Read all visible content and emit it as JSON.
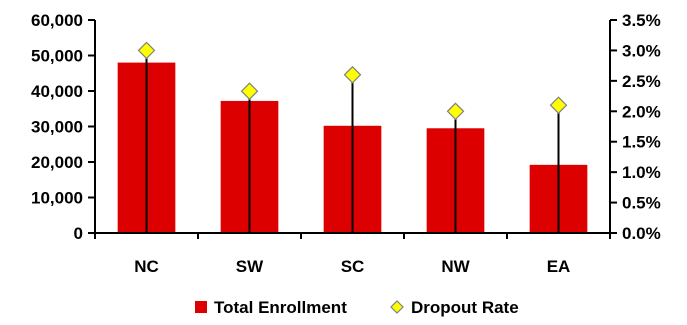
{
  "chart_data": {
    "type": "bar",
    "categories": [
      "NC",
      "SW",
      "SC",
      "NW",
      "EA"
    ],
    "series": [
      {
        "name": "Total Enrollment",
        "kind": "bar",
        "axis": "left",
        "color": "#dd0000",
        "values": [
          48000,
          37200,
          30200,
          29500,
          19200
        ]
      },
      {
        "name": "Dropout Rate",
        "kind": "marker-line",
        "axis": "right",
        "marker": "diamond",
        "color": "#ffff00",
        "values": [
          0.03,
          0.0233,
          0.026,
          0.02,
          0.021
        ]
      }
    ],
    "y_left": {
      "min": 0,
      "max": 60000,
      "ticks": [
        0,
        10000,
        20000,
        30000,
        40000,
        50000,
        60000
      ],
      "tick_labels": [
        "0",
        "10,000",
        "20,000",
        "30,000",
        "40,000",
        "50,000",
        "60,000"
      ]
    },
    "y_right": {
      "min": 0,
      "max": 0.035,
      "ticks": [
        0,
        0.005,
        0.01,
        0.015,
        0.02,
        0.025,
        0.03,
        0.035
      ],
      "tick_labels": [
        "0.0%",
        "0.5%",
        "1.0%",
        "1.5%",
        "2.0%",
        "2.5%",
        "3.0%",
        "3.5%"
      ]
    },
    "legend": {
      "position": "bottom",
      "entries": [
        "Total Enrollment",
        "Dropout Rate"
      ]
    },
    "grid": false
  }
}
